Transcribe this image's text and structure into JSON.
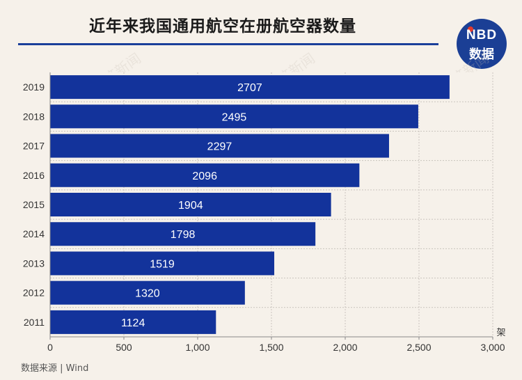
{
  "title": "近年来我国通用航空在册航空器数量",
  "logo": {
    "top": "NBD",
    "bottom": "数据"
  },
  "source": "数据来源 | Wind",
  "watermark": "每日经济新闻",
  "colors": {
    "bar": "#13339b",
    "title_rule": "#1a3f9a",
    "logo_bg": "#1b3f95",
    "background": "#f6f1ea"
  },
  "chart_data": {
    "type": "bar",
    "orientation": "horizontal",
    "categories": [
      "2019",
      "2018",
      "2017",
      "2016",
      "2015",
      "2014",
      "2013",
      "2012",
      "2011"
    ],
    "values": [
      2707,
      2495,
      2297,
      2096,
      1904,
      1798,
      1519,
      1320,
      1124
    ],
    "xlim": [
      0,
      3000
    ],
    "xticks": [
      0,
      500,
      1000,
      1500,
      2000,
      2500,
      3000
    ],
    "xtick_labels": [
      "0",
      "500",
      "1,000",
      "1,500",
      "2,000",
      "2,500",
      "3,000"
    ],
    "xlabel": "架",
    "title": "近年来我国通用航空在册航空器数量",
    "grid": true
  }
}
